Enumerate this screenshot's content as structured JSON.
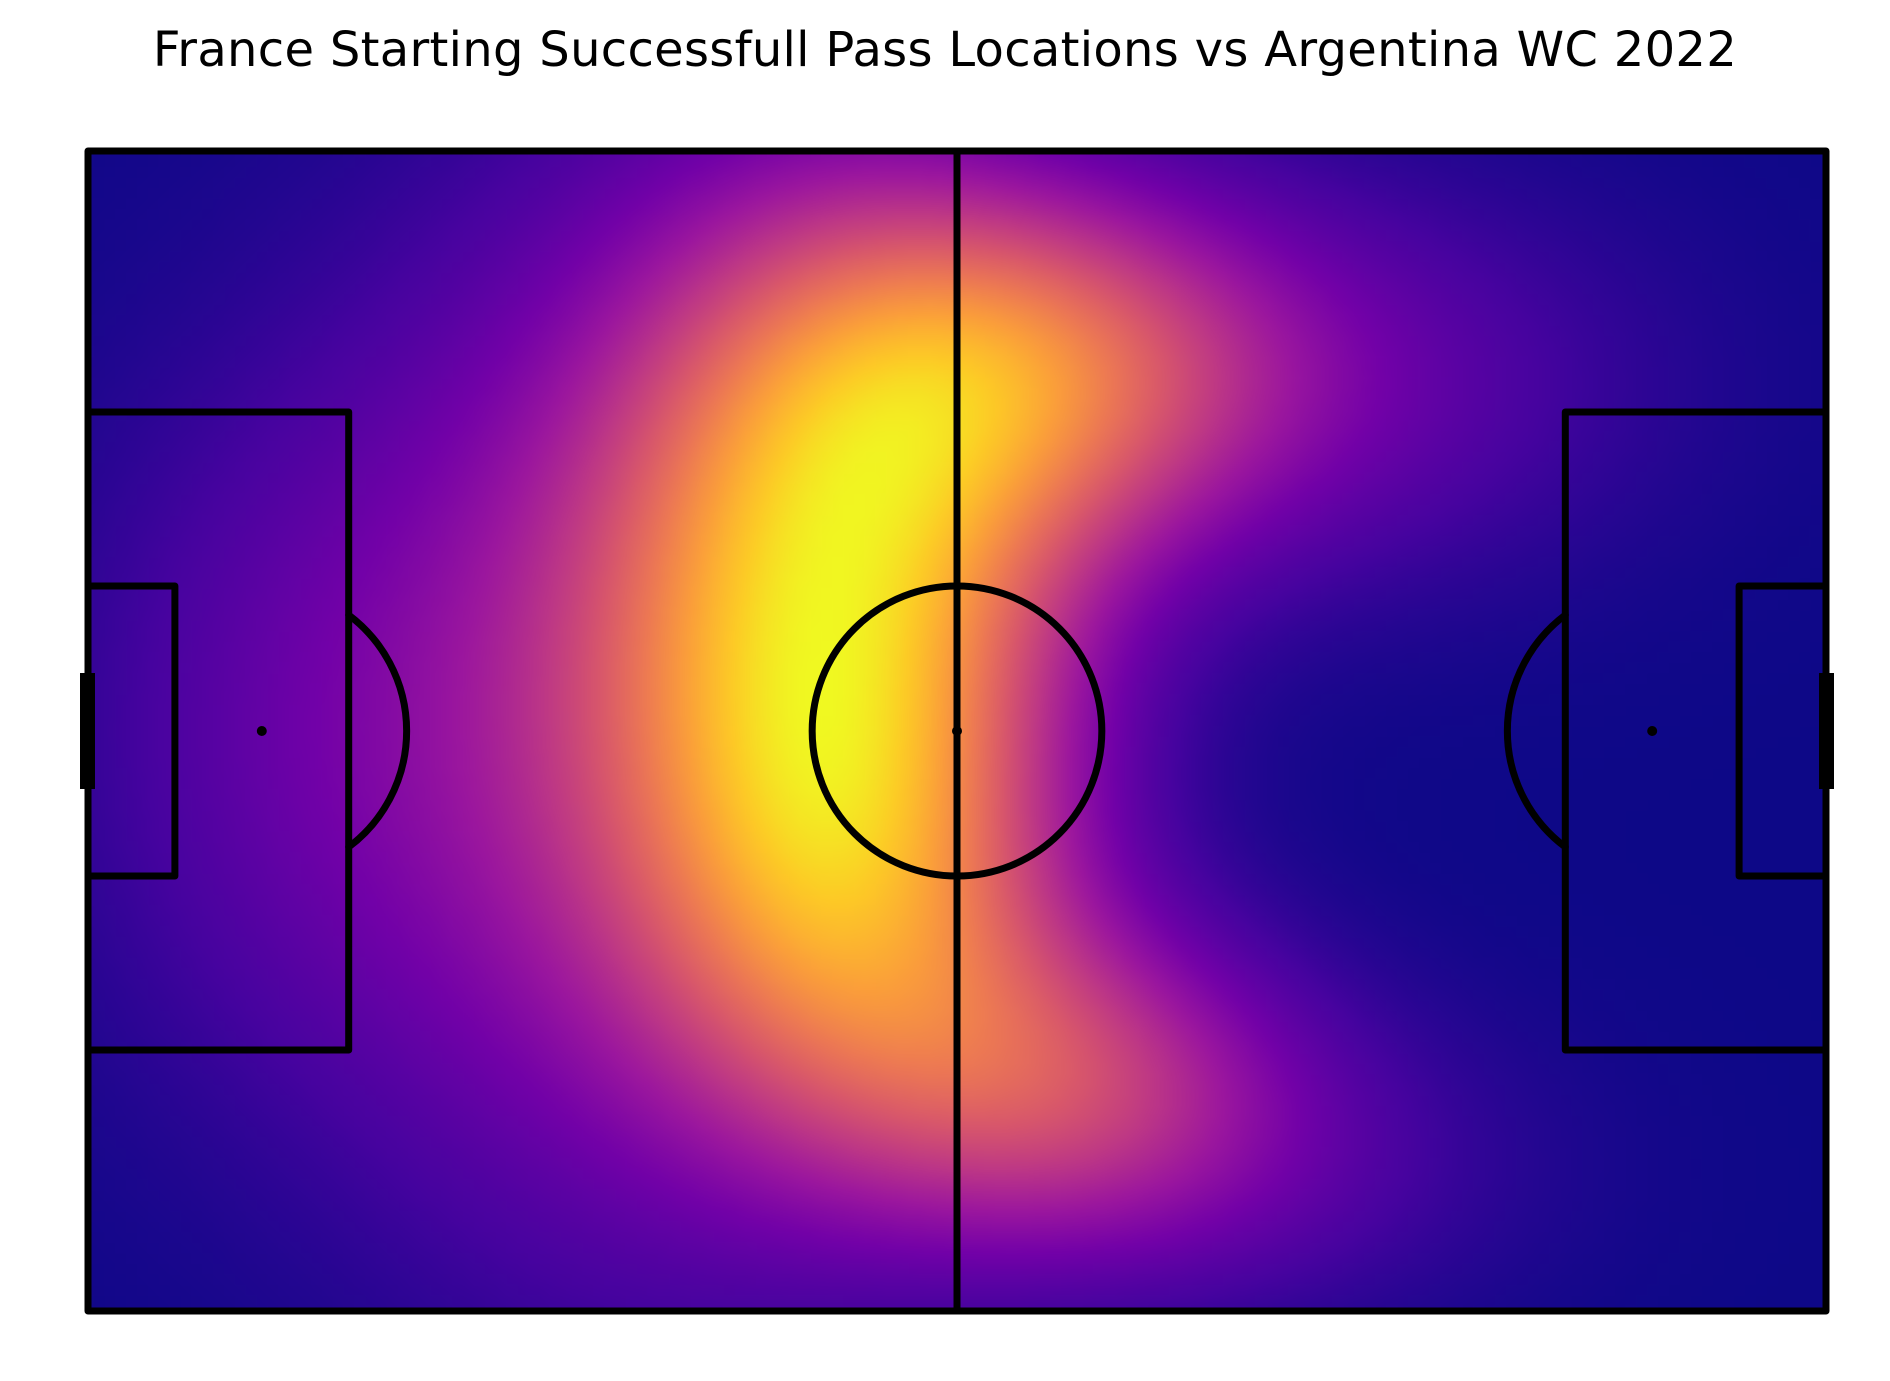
{
  "chart_data": {
    "type": "heatmap",
    "title": "France Starting Successfull Pass Locations vs Argentina WC 2022",
    "xlabel": "",
    "ylabel": "",
    "pitch": {
      "length": 120,
      "width": 80,
      "line_color": "#000000"
    },
    "colormap": "plasma",
    "colormap_stops": [
      "#0d0887",
      "#46039f",
      "#7201a8",
      "#9c179e",
      "#bd3786",
      "#d8576b",
      "#ed7953",
      "#fb9f3a",
      "#fdca26",
      "#f0f921"
    ],
    "grid": false,
    "legend": "none",
    "density_components": [
      {
        "x": 52,
        "y": 30,
        "sx": 11,
        "sy": 17,
        "w": 1.0
      },
      {
        "x": 53,
        "y": 52,
        "sx": 10,
        "sy": 12,
        "w": 0.55
      },
      {
        "x": 65,
        "y": 15,
        "sx": 12,
        "sy": 9,
        "w": 0.7
      },
      {
        "x": 67,
        "y": 64,
        "sx": 11,
        "sy": 8,
        "w": 0.55
      },
      {
        "x": 38,
        "y": 40,
        "sx": 15,
        "sy": 26,
        "w": 0.45
      },
      {
        "x": 14,
        "y": 40,
        "sx": 13,
        "sy": 18,
        "w": 0.18
      },
      {
        "x": 85,
        "y": 16,
        "sx": 16,
        "sy": 10,
        "w": 0.25
      },
      {
        "x": 80,
        "y": 70,
        "sx": 14,
        "sy": 8,
        "w": 0.18
      }
    ]
  }
}
